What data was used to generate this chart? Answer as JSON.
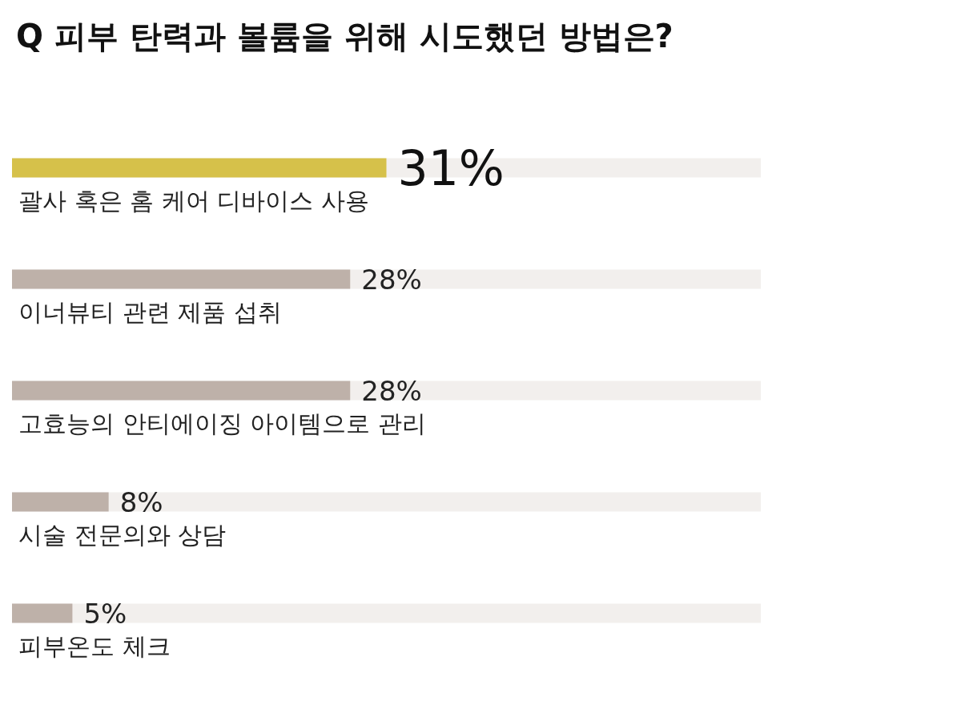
{
  "chart_data": {
    "type": "bar",
    "orientation": "horizontal",
    "title": "Q 피부 탄력과 볼륨을 위해 시도했던 방법은?",
    "categories": [
      "괄사 혹은 홈 케어 디바이스 사용",
      "이너뷰티 관련 제품 섭취",
      "고효능의 안티에이징 아이템으로 관리",
      "시술 전문의와 상담",
      "피부온도 체크"
    ],
    "values": [
      31,
      28,
      28,
      8,
      5
    ],
    "value_labels": [
      "31%",
      "28%",
      "28%",
      "8%",
      "5%"
    ],
    "colors": [
      "#d6c14a",
      "#beb1a9",
      "#beb1a9",
      "#beb1a9",
      "#beb1a9"
    ]
  }
}
